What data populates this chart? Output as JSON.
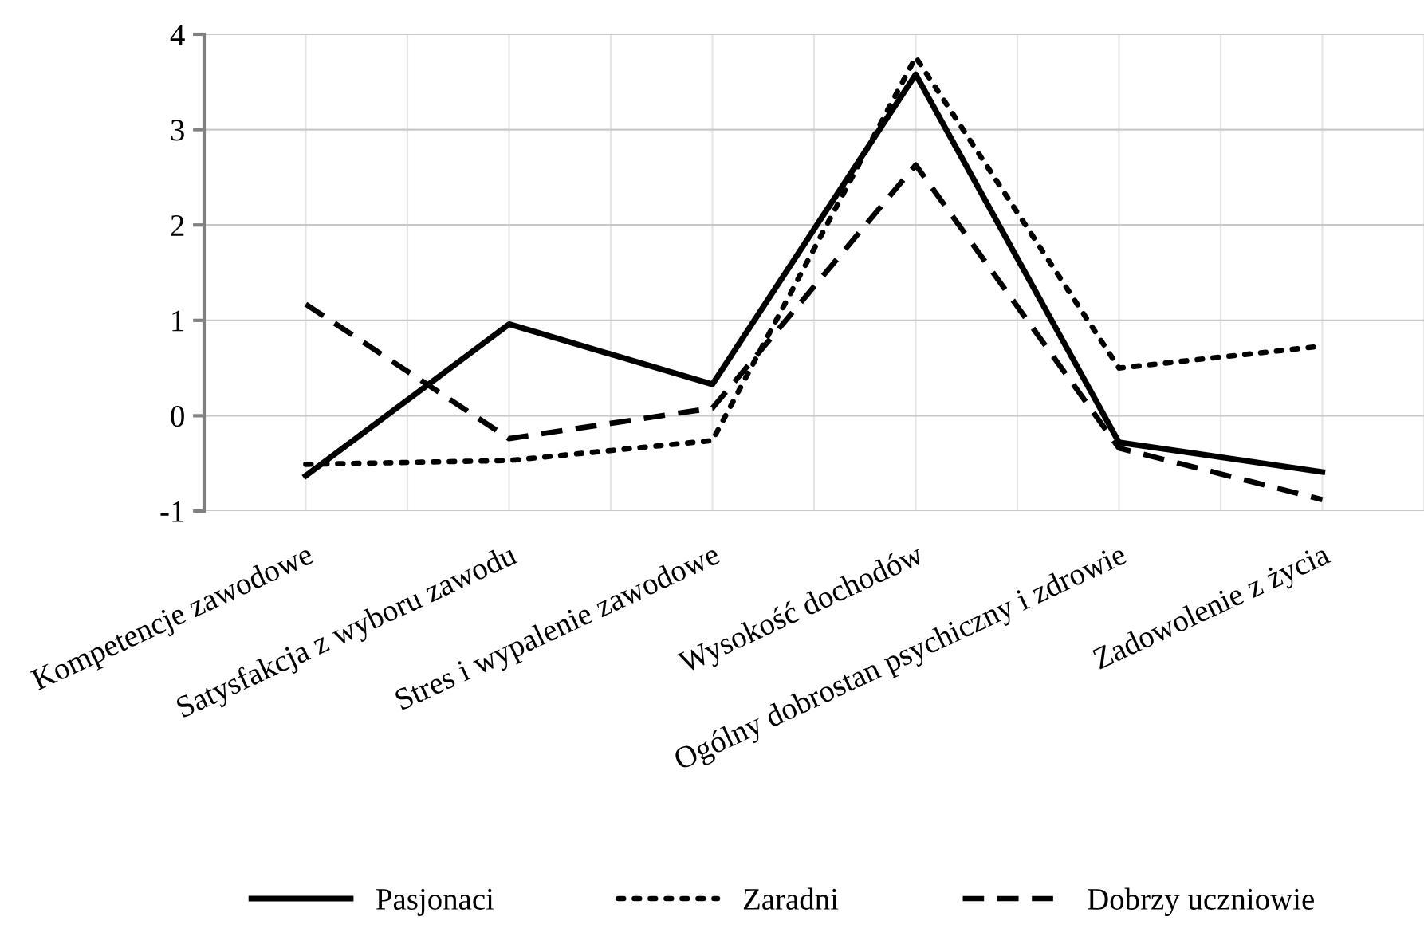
{
  "chart_data": {
    "type": "line",
    "categories": [
      "Kompetencje zawodowe",
      "Satysfakcja z wyboru zawodu",
      "Stres i wypalenie zawodowe",
      "Wysokość dochodów",
      "Ogólny dobrostan psychiczny i zdrowie",
      "Zadowolenie z życia"
    ],
    "series": [
      {
        "name": "Pasjonaci",
        "color": "#000000",
        "line_style": "solid",
        "values": [
          -0.63,
          0.96,
          0.33,
          3.58,
          -0.28,
          -0.59
        ]
      },
      {
        "name": "Zaradni",
        "color": "#000000",
        "line_style": "dotted",
        "values": [
          -0.51,
          -0.47,
          -0.26,
          3.76,
          0.5,
          0.73
        ]
      },
      {
        "name": "Dobrzy uczniowie",
        "color": "#000000",
        "line_style": "dashed",
        "values": [
          1.17,
          -0.24,
          0.08,
          2.63,
          -0.34,
          -0.88
        ]
      }
    ],
    "ylim": [
      -1,
      4
    ],
    "yticks": [
      -1,
      0,
      1,
      2,
      3,
      4
    ],
    "grid": true,
    "legend": "bottom",
    "marker": "none"
  }
}
